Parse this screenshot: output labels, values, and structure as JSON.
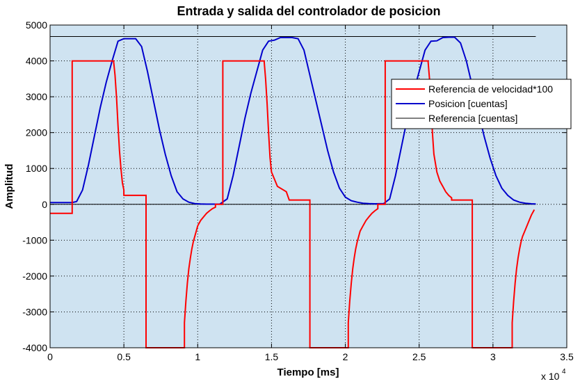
{
  "chart_data": {
    "type": "line",
    "title": "Entrada y salida del controlador de posicion",
    "xlabel": "Tiempo [ms]",
    "ylabel": "Amplitud",
    "x_multiplier_base": "x 10",
    "x_multiplier_exp": "4",
    "xlim": [
      0,
      35000
    ],
    "ylim": [
      -4000,
      5000
    ],
    "xticks": [
      0,
      5000,
      10000,
      15000,
      20000,
      25000,
      30000,
      35000
    ],
    "xtick_labels": [
      "0",
      "0.5",
      "1",
      "1.5",
      "2",
      "2.5",
      "3",
      "3.5"
    ],
    "yticks": [
      -4000,
      -3000,
      -2000,
      -1000,
      0,
      1000,
      2000,
      3000,
      4000,
      5000
    ],
    "ytick_labels": [
      "-4000",
      "-3000",
      "-2000",
      "-1000",
      "0",
      "1000",
      "2000",
      "3000",
      "4000",
      "5000"
    ],
    "grid": true,
    "legend_position": "top-right",
    "colors": {
      "background": "#cfe3f1",
      "grid": "#000000",
      "axes": "#000000"
    },
    "series": [
      {
        "name": "Referencia de velocidad*100",
        "color": "#ff0000",
        "x": [
          0,
          1500,
          1500,
          4300,
          4400,
          4500,
          4600,
          4700,
          4800,
          4900,
          5000,
          5000,
          6500,
          6500,
          9100,
          9100,
          9200,
          9300,
          9400,
          9500,
          9600,
          9700,
          9800,
          9900,
          10000,
          10200,
          10400,
          10600,
          10800,
          11000,
          11200,
          11200,
          11700,
          11700,
          14500,
          14600,
          14700,
          14800,
          14900,
          15000,
          15200,
          15400,
          15400,
          16000,
          16000,
          16200,
          16200,
          17600,
          17600,
          20200,
          20200,
          20300,
          20400,
          20500,
          20600,
          20700,
          20800,
          20900,
          21000,
          21200,
          21400,
          21600,
          21800,
          22000,
          22200,
          22200,
          22700,
          22700,
          25600,
          25700,
          25800,
          25900,
          26000,
          26200,
          26400,
          26600,
          26800,
          27000,
          27200,
          27200,
          28600,
          28600,
          31300,
          31300,
          31400,
          31500,
          31600,
          31700,
          31800,
          31900,
          32000,
          32200,
          32400,
          32600,
          32800
        ],
        "values": [
          -250,
          -250,
          4000,
          4000,
          3600,
          3000,
          2200,
          1500,
          1000,
          600,
          400,
          250,
          250,
          -4000,
          -4000,
          -3300,
          -2700,
          -2200,
          -1800,
          -1500,
          -1250,
          -1050,
          -900,
          -750,
          -600,
          -450,
          -350,
          -250,
          -180,
          -120,
          -80,
          0,
          0,
          4000,
          4000,
          3500,
          2800,
          2000,
          1300,
          900,
          700,
          500,
          500,
          350,
          350,
          120,
          120,
          120,
          -4000,
          -4000,
          -3300,
          -2700,
          -2200,
          -1800,
          -1500,
          -1250,
          -1050,
          -900,
          -750,
          -600,
          -450,
          -350,
          -250,
          -180,
          -120,
          0,
          0,
          4000,
          4000,
          3500,
          2800,
          2000,
          1400,
          900,
          650,
          500,
          350,
          250,
          180,
          120,
          120,
          -4000,
          -4000,
          -3300,
          -2700,
          -2200,
          -1800,
          -1500,
          -1250,
          -1050,
          -900,
          -700,
          -500,
          -300,
          -150
        ]
      },
      {
        "name": "Posicion [cuentas]",
        "color": "#0000cc",
        "x": [
          0,
          1500,
          1800,
          2200,
          2600,
          3000,
          3400,
          3800,
          4200,
          4600,
          5000,
          5400,
          5800,
          6200,
          6600,
          7000,
          7400,
          7800,
          8200,
          8600,
          9000,
          9400,
          9800,
          10200,
          10600,
          11000,
          11500,
          12000,
          12400,
          12800,
          13200,
          13600,
          14000,
          14400,
          14800,
          15200,
          15600,
          16000,
          16400,
          16800,
          17200,
          17600,
          18000,
          18400,
          18800,
          19200,
          19600,
          20000,
          20400,
          20800,
          21200,
          21600,
          22000,
          22600,
          23000,
          23400,
          23800,
          24200,
          24600,
          25000,
          25400,
          25800,
          26200,
          26600,
          27000,
          27400,
          27800,
          28200,
          28600,
          29000,
          29400,
          29800,
          30200,
          30600,
          31000,
          31400,
          31800,
          32200,
          32600,
          32900
        ],
        "values": [
          50,
          50,
          80,
          400,
          1100,
          1900,
          2700,
          3400,
          4000,
          4550,
          4620,
          4620,
          4620,
          4400,
          3700,
          2900,
          2100,
          1400,
          800,
          350,
          150,
          60,
          20,
          10,
          5,
          5,
          5,
          150,
          800,
          1600,
          2400,
          3100,
          3700,
          4300,
          4550,
          4580,
          4650,
          4650,
          4650,
          4620,
          4300,
          3600,
          2900,
          2200,
          1500,
          900,
          450,
          200,
          100,
          60,
          30,
          20,
          15,
          20,
          150,
          800,
          1600,
          2400,
          3100,
          3700,
          4300,
          4550,
          4560,
          4650,
          4660,
          4660,
          4500,
          4000,
          3300,
          2600,
          1900,
          1300,
          800,
          450,
          250,
          120,
          60,
          30,
          15,
          10
        ]
      },
      {
        "name": "Referencia [cuentas]",
        "color": "#000000",
        "x": [
          0,
          32900
        ],
        "values": [
          4680,
          4680
        ]
      },
      {
        "x": [
          0,
          32900
        ],
        "values": [
          0,
          0
        ],
        "color": "#000000"
      }
    ]
  }
}
